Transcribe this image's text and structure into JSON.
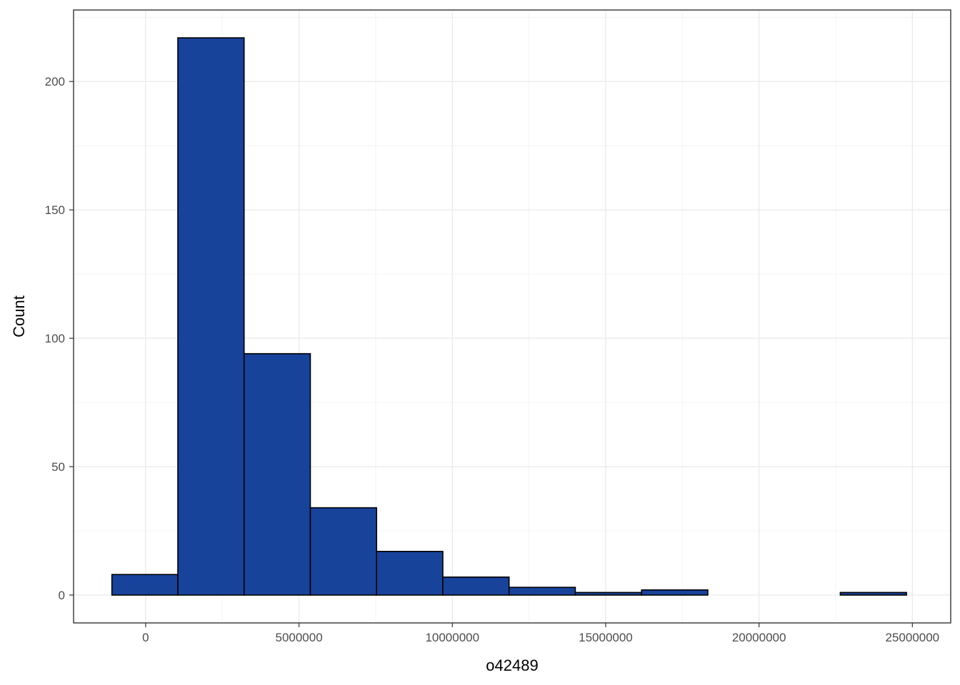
{
  "chart_data": {
    "type": "bar",
    "subtype": "histogram",
    "xlabel": "o42489",
    "ylabel": "Count",
    "xlim": [
      -2350000,
      26250000
    ],
    "ylim": [
      -10.85,
      227.85
    ],
    "x_ticks": [
      0,
      5000000,
      10000000,
      15000000,
      20000000,
      25000000
    ],
    "x_tick_labels": [
      "0",
      "5000000",
      "10000000",
      "15000000",
      "20000000",
      "25000000"
    ],
    "y_ticks": [
      0,
      50,
      100,
      150,
      200
    ],
    "y_tick_labels": [
      "0",
      "50",
      "100",
      "150",
      "200"
    ],
    "x_minor_ticks": [
      2500000,
      7500000,
      12500000,
      17500000,
      22500000
    ],
    "y_minor_ticks": [
      25,
      75,
      125,
      175,
      225
    ],
    "grid": true,
    "legend": "none",
    "bins": [
      {
        "x0": -1100000,
        "x1": 1050000,
        "count": 8
      },
      {
        "x0": 1050000,
        "x1": 3210000,
        "count": 217
      },
      {
        "x0": 3210000,
        "x1": 5370000,
        "count": 94
      },
      {
        "x0": 5370000,
        "x1": 7530000,
        "count": 34
      },
      {
        "x0": 7530000,
        "x1": 9690000,
        "count": 17
      },
      {
        "x0": 9690000,
        "x1": 11850000,
        "count": 7
      },
      {
        "x0": 11850000,
        "x1": 14010000,
        "count": 3
      },
      {
        "x0": 14010000,
        "x1": 16170000,
        "count": 1
      },
      {
        "x0": 16170000,
        "x1": 18330000,
        "count": 2
      },
      {
        "x0": 18330000,
        "x1": 20490000,
        "count": 0
      },
      {
        "x0": 20490000,
        "x1": 22650000,
        "count": 0
      },
      {
        "x0": 22650000,
        "x1": 24810000,
        "count": 1
      }
    ],
    "colors": {
      "bar_fill": "#17439b",
      "bar_stroke": "#000000",
      "grid_major": "#ebebeb",
      "grid_minor": "#f4f4f4",
      "panel_border": "#333333",
      "tick_label": "#4d4d4d"
    }
  }
}
